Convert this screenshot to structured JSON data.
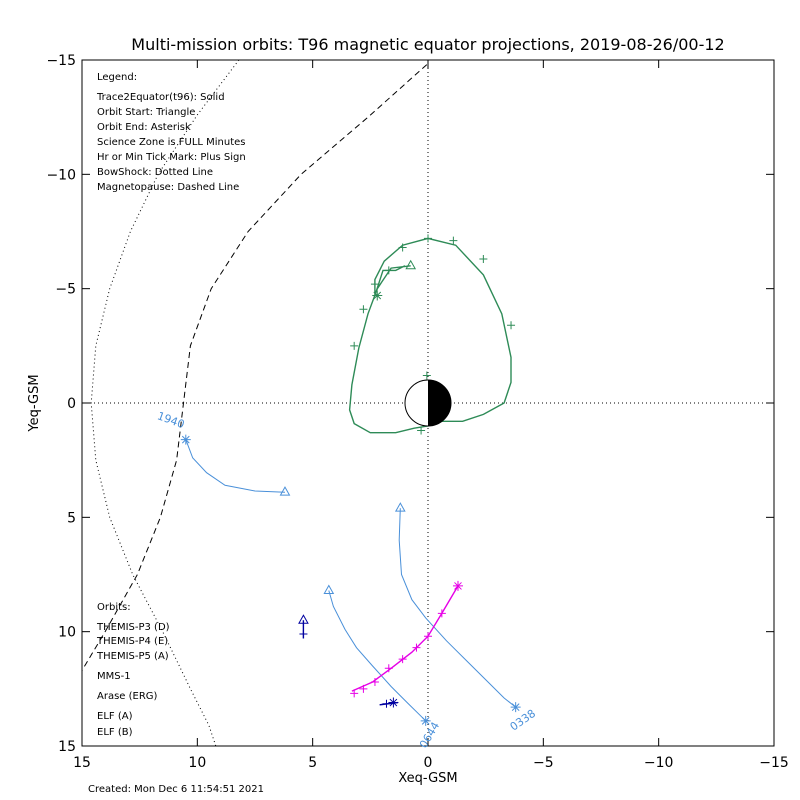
{
  "chart_data": {
    "type": "line",
    "title": "Multi-mission orbits: T96 magnetic equator projections, 2019-08-26/00-12",
    "xlabel": "Xeq-GSM",
    "ylabel": "Yeq-GSM",
    "xlim": [
      15,
      -15
    ],
    "ylim": [
      -15,
      15
    ],
    "x_ticks": [
      15,
      10,
      5,
      0,
      -5,
      -10,
      -15
    ],
    "y_ticks": [
      -15,
      -10,
      -5,
      0,
      5,
      10,
      15
    ],
    "x_tick_labels": [
      "15",
      "10",
      "5",
      "0",
      "−5",
      "−10",
      "−15"
    ],
    "y_tick_labels": [
      "−15",
      "−10",
      "−5",
      "0",
      "5",
      "10",
      "15"
    ],
    "grid": false,
    "legend_title": "Legend:",
    "legend_lines": [
      "Trace2Equator(t96): Solid",
      "Orbit Start: Triangle",
      "Orbit End: Asterisk",
      "Science Zone is FULL Minutes",
      "Hr or Min Tick Mark: Plus Sign",
      "BowShock: Dotted Line",
      "Magnetopause: Dashed Line"
    ],
    "orbits_title": "Orbits:",
    "orbit_legend": [
      {
        "label": "THEMIS-P3 (D)",
        "color": "#00e5ee"
      },
      {
        "label": "THEMIS-P4 (E)",
        "color": "#0000a0"
      },
      {
        "label": "THEMIS-P5 (A)",
        "color": "#e600e6"
      },
      {
        "label": "MMS-1",
        "color": "#000000"
      },
      {
        "label": "Arase (ERG)",
        "color": "#2e8b57"
      },
      {
        "label": "ELF (A)",
        "color": "#4a90d9"
      },
      {
        "label": "ELF (B)",
        "color": "#e00000"
      }
    ],
    "created": "Created: Mon Dec  6 11:54:51 2021",
    "colors": {
      "arase": "#2e8b57",
      "elf_a": "#4a90d9",
      "themis_p4": "#0000a0",
      "themis_p5": "#e600e6"
    },
    "earth": {
      "radius": 1
    },
    "reference_lines": {
      "x": 0,
      "y": 0
    },
    "series": [
      {
        "id": "magnetopause",
        "style": "dashed",
        "color": "#000000",
        "points": [
          [
            0.05,
            -14.8
          ],
          [
            2.6,
            -12.5
          ],
          [
            5.5,
            -10
          ],
          [
            7.8,
            -7.5
          ],
          [
            9.4,
            -5
          ],
          [
            10.3,
            -2.5
          ],
          [
            10.6,
            0
          ],
          [
            10.9,
            2.5
          ],
          [
            11.6,
            5
          ],
          [
            12.6,
            7.5
          ],
          [
            14,
            10
          ],
          [
            15,
            11.7
          ]
        ]
      },
      {
        "id": "bowshock",
        "style": "dotted",
        "color": "#000000",
        "points": [
          [
            8.2,
            -15
          ],
          [
            10,
            -12.6
          ],
          [
            11.7,
            -10
          ],
          [
            12.9,
            -7.5
          ],
          [
            13.8,
            -5
          ],
          [
            14.4,
            -2.5
          ],
          [
            14.6,
            0
          ],
          [
            14.4,
            2.5
          ],
          [
            13.8,
            5
          ],
          [
            12.8,
            7.5
          ],
          [
            11.5,
            10
          ],
          [
            10.3,
            12.5
          ],
          [
            9.5,
            14.1
          ],
          [
            9.2,
            15
          ]
        ]
      },
      {
        "id": "arase",
        "name": "Arase (ERG)",
        "color": "#2e8b57",
        "points": [
          [
            0.75,
            -6
          ],
          [
            1.6,
            -5.9
          ],
          [
            2.2,
            -5
          ],
          [
            2.6,
            -3.9
          ],
          [
            3.0,
            -2.4
          ],
          [
            3.3,
            -0.8
          ],
          [
            3.4,
            0.3
          ],
          [
            3.2,
            0.9
          ],
          [
            2.5,
            1.3
          ],
          [
            1.4,
            1.3
          ],
          [
            0.6,
            1.1
          ],
          [
            0,
            1.0
          ],
          [
            -0.6,
            0.8
          ],
          [
            -1.5,
            0.8
          ],
          [
            -2.4,
            0.5
          ],
          [
            -3.3,
            0
          ],
          [
            -3.6,
            -0.9
          ],
          [
            -3.6,
            -2
          ],
          [
            -3.2,
            -3.9
          ],
          [
            -2.4,
            -5.6
          ],
          [
            -1.2,
            -6.9
          ],
          [
            0,
            -7.2
          ],
          [
            1.1,
            -6.9
          ],
          [
            1.9,
            -6.2
          ],
          [
            2.3,
            -5.4
          ],
          [
            2.3,
            -4.7
          ],
          [
            1.95,
            -5.8
          ],
          [
            1.4,
            -5.8
          ],
          [
            1.0,
            -6.0
          ]
        ],
        "start": [
          0.75,
          -6
        ],
        "end": [
          2.2,
          -4.7
        ],
        "ticks": [
          [
            1.7,
            -5.8
          ],
          [
            1.1,
            -6.8
          ],
          [
            0,
            -7.2
          ],
          [
            -1.1,
            -7.1
          ],
          [
            -2.4,
            -6.3
          ],
          [
            -3.6,
            -3.4
          ],
          [
            3.2,
            -2.5
          ],
          [
            2.8,
            -4.1
          ],
          [
            2.3,
            -5.2
          ],
          [
            0.05,
            -1.2
          ],
          [
            0.3,
            1.2
          ]
        ]
      },
      {
        "id": "elf_north",
        "name": "ELF (A)",
        "color": "#4a90d9",
        "points": [
          [
            6.2,
            3.9
          ],
          [
            7.5,
            3.85
          ],
          [
            8.8,
            3.6
          ],
          [
            9.6,
            3.05
          ],
          [
            10.2,
            2.4
          ],
          [
            10.5,
            1.6
          ]
        ],
        "start": [
          6.2,
          3.9
        ],
        "end": [
          10.5,
          1.6
        ],
        "annotation": {
          "text": "1940",
          "at": [
            11.2,
            0.9
          ],
          "rotate": 20
        }
      },
      {
        "id": "elf_mid",
        "name": "ELF (A)",
        "color": "#4a90d9",
        "points": [
          [
            1.2,
            4.6
          ],
          [
            1.25,
            6.0
          ],
          [
            1.15,
            7.5
          ],
          [
            0.7,
            8.6
          ],
          [
            0.1,
            9.4
          ],
          [
            -0.8,
            10.4
          ],
          [
            -1.7,
            11.3
          ],
          [
            -2.6,
            12.2
          ],
          [
            -3.3,
            12.9
          ],
          [
            -3.8,
            13.3
          ]
        ],
        "start": [
          1.2,
          4.6
        ],
        "end": [
          -3.8,
          13.3
        ],
        "annotation": {
          "text": "0338",
          "at": [
            -4.2,
            14.0
          ],
          "rotate": -35
        }
      },
      {
        "id": "elf_south",
        "name": "ELF (A)",
        "color": "#4a90d9",
        "points": [
          [
            4.3,
            8.2
          ],
          [
            4.1,
            8.9
          ],
          [
            3.6,
            9.9
          ],
          [
            3.1,
            10.7
          ],
          [
            2.4,
            11.5
          ],
          [
            1.6,
            12.4
          ],
          [
            0.9,
            13.1
          ],
          [
            0.1,
            13.9
          ]
        ],
        "start": [
          4.3,
          8.2
        ],
        "end": [
          0.1,
          13.9
        ],
        "annotation": {
          "text": "0644",
          "at": [
            -0.2,
            14.6
          ],
          "rotate": -60
        }
      },
      {
        "id": "themis_p4",
        "name": "THEMIS-P4 (E)",
        "color": "#0000a0",
        "points": [
          [
            5.4,
            9.5
          ],
          [
            5.4,
            10.3
          ]
        ],
        "start": [
          5.4,
          9.5
        ],
        "end": null,
        "ticks": [
          [
            5.4,
            10.1
          ]
        ],
        "extra": {
          "points": [
            [
              2.1,
              13.2
            ],
            [
              1.3,
              13.1
            ]
          ],
          "end": [
            1.5,
            13.1
          ],
          "ticks": [
            [
              1.8,
              13.15
            ]
          ]
        }
      },
      {
        "id": "themis_p5",
        "name": "THEMIS-P5 (A)",
        "color": "#e600e6",
        "points": [
          [
            -1.3,
            8.0
          ],
          [
            -0.6,
            9.2
          ],
          [
            0,
            10.2
          ],
          [
            0.7,
            10.9
          ],
          [
            1.6,
            11.6
          ],
          [
            2.4,
            12.2
          ],
          [
            3.3,
            12.6
          ]
        ],
        "start": null,
        "end": [
          -1.3,
          8.0
        ],
        "ticks": [
          [
            -0.6,
            9.2
          ],
          [
            0,
            10.2
          ],
          [
            0.5,
            10.7
          ],
          [
            1.1,
            11.2
          ],
          [
            1.7,
            11.6
          ],
          [
            2.3,
            12.2
          ],
          [
            2.8,
            12.5
          ],
          [
            3.2,
            12.7
          ]
        ]
      }
    ]
  }
}
